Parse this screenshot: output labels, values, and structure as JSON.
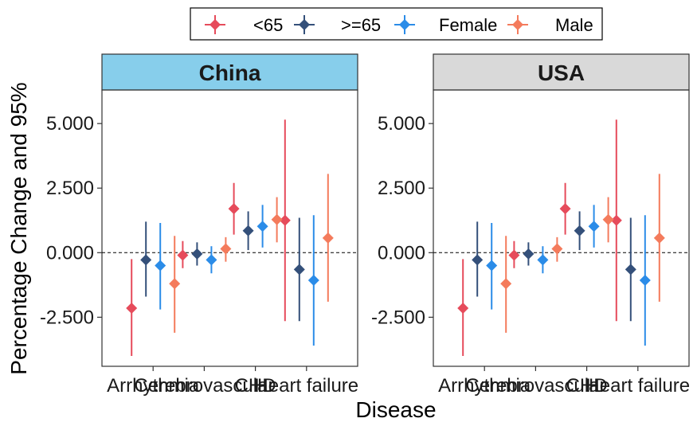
{
  "chart_data": {
    "type": "scatter",
    "xlabel": "Disease",
    "ylabel": "Percentage Change and 95%",
    "ylim": [
      -4.4,
      6.3
    ],
    "y_ticks": [
      -2.5,
      0.0,
      2.5,
      5.0
    ],
    "y_tick_labels": [
      "-2.500",
      "0.000",
      "2.500",
      "5.000"
    ],
    "reference_line": 0,
    "categories": [
      "Arrhythmia",
      "Cerebrovascular",
      "CHD",
      "Heart failure"
    ],
    "legend": {
      "position": "top",
      "entries": [
        "<65",
        ">=65",
        "Female",
        "Male"
      ]
    },
    "series_colors": {
      "<65": "#E64B5B",
      ">=65": "#34507A",
      "Female": "#2B8CE8",
      "Male": "#F47B5C"
    },
    "panels": [
      {
        "label": "China",
        "strip_color": "#87CEEB",
        "series": [
          {
            "name": "<65",
            "est": [
              -2.15,
              -0.1,
              1.7,
              1.25
            ],
            "lo": [
              -4.0,
              -0.6,
              0.7,
              -2.65
            ],
            "hi": [
              -0.25,
              0.45,
              2.7,
              5.15
            ]
          },
          {
            "name": ">=65",
            "est": [
              -0.28,
              -0.05,
              0.85,
              -0.65
            ],
            "lo": [
              -1.7,
              -0.5,
              0.1,
              -2.65
            ],
            "hi": [
              1.2,
              0.4,
              1.6,
              1.35
            ]
          },
          {
            "name": "Female",
            "est": [
              -0.5,
              -0.28,
              1.02,
              -1.07
            ],
            "lo": [
              -2.2,
              -0.8,
              0.2,
              -3.6
            ],
            "hi": [
              1.15,
              0.25,
              1.85,
              1.45
            ]
          },
          {
            "name": "Male",
            "est": [
              -1.2,
              0.15,
              1.28,
              0.57
            ],
            "lo": [
              -3.1,
              -0.35,
              0.4,
              -1.9
            ],
            "hi": [
              0.65,
              0.6,
              2.15,
              3.05
            ]
          }
        ]
      },
      {
        "label": "USA",
        "strip_color": "#D9D9D9",
        "series": [
          {
            "name": "<65",
            "est": [
              -2.15,
              -0.1,
              1.7,
              1.25
            ],
            "lo": [
              -4.0,
              -0.6,
              0.7,
              -2.65
            ],
            "hi": [
              -0.25,
              0.45,
              2.7,
              5.15
            ]
          },
          {
            "name": ">=65",
            "est": [
              -0.28,
              -0.05,
              0.85,
              -0.65
            ],
            "lo": [
              -1.7,
              -0.5,
              0.1,
              -2.65
            ],
            "hi": [
              1.2,
              0.4,
              1.6,
              1.35
            ]
          },
          {
            "name": "Female",
            "est": [
              -0.5,
              -0.28,
              1.02,
              -1.07
            ],
            "lo": [
              -2.2,
              -0.8,
              0.2,
              -3.6
            ],
            "hi": [
              1.15,
              0.25,
              1.85,
              1.45
            ]
          },
          {
            "name": "Male",
            "est": [
              -1.2,
              0.15,
              1.28,
              0.57
            ],
            "lo": [
              -3.1,
              -0.35,
              0.4,
              -1.9
            ],
            "hi": [
              0.65,
              0.6,
              2.15,
              3.05
            ]
          }
        ]
      }
    ]
  }
}
